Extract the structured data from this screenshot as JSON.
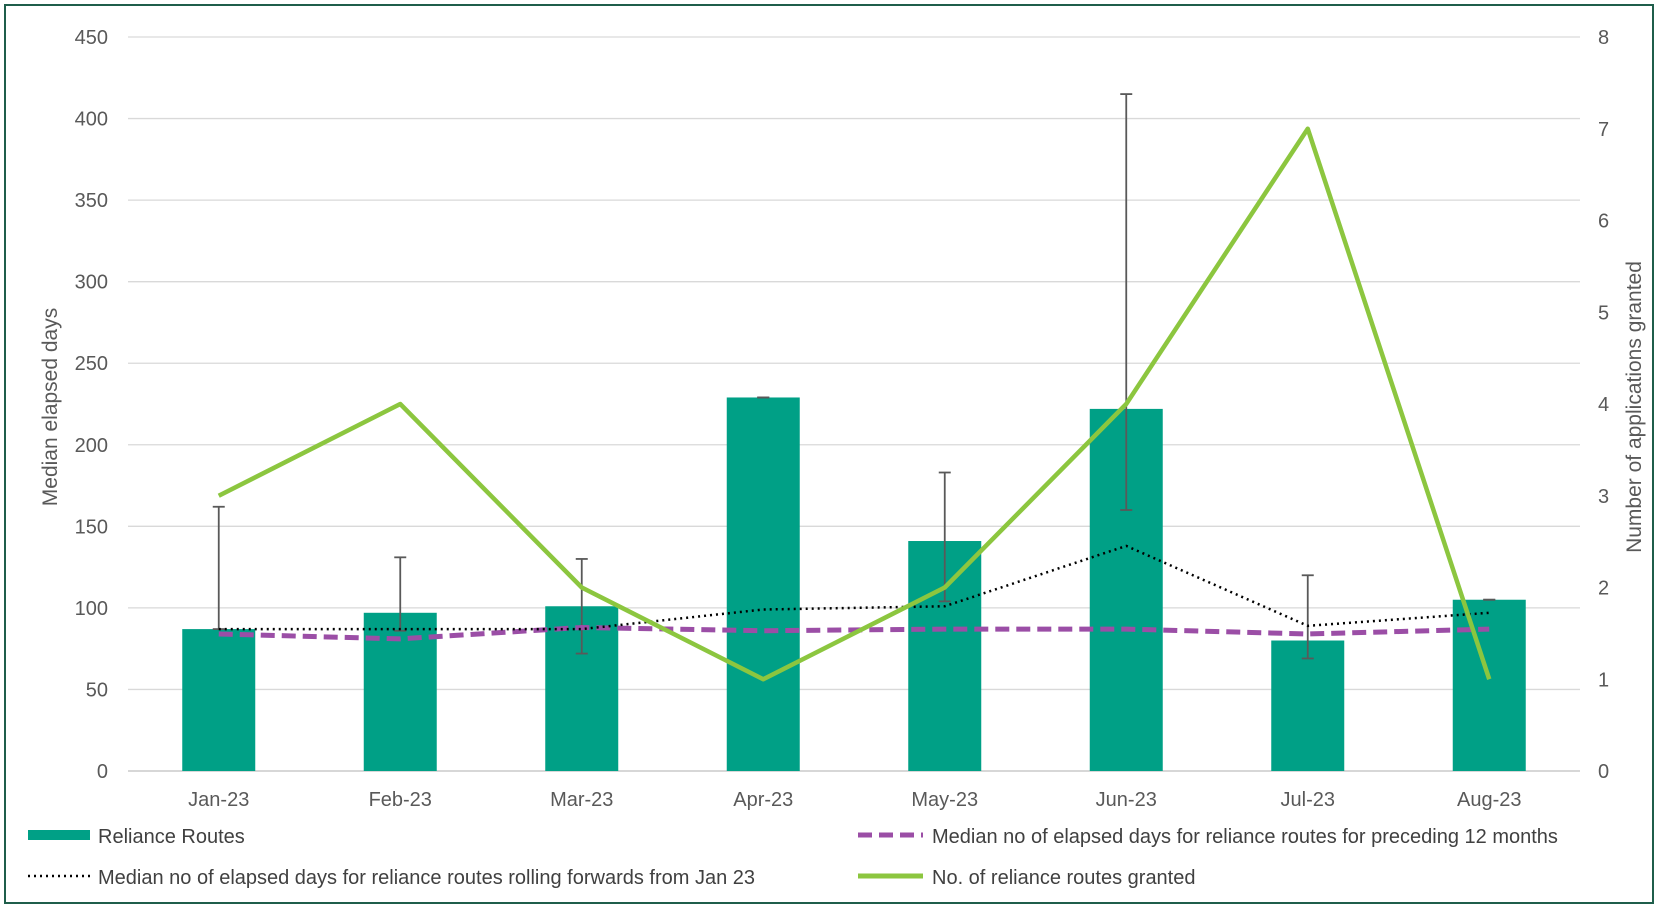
{
  "chart_data": {
    "type": "bar",
    "categories": [
      "Jan-23",
      "Feb-23",
      "Mar-23",
      "Apr-23",
      "May-23",
      "Jun-23",
      "Jul-23",
      "Aug-23"
    ],
    "ylabel": "Median elapsed days",
    "y2label": "Number  of applications granted",
    "ylim": [
      0,
      450
    ],
    "y_ticks": [
      0,
      50,
      100,
      150,
      200,
      250,
      300,
      350,
      400,
      450
    ],
    "y2lim": [
      0,
      8
    ],
    "y2_ticks": [
      0,
      1,
      2,
      3,
      4,
      5,
      6,
      7,
      8
    ],
    "grid": true,
    "legend_position": "bottom",
    "series": [
      {
        "name": "Reliance Routes",
        "type": "bar",
        "axis": "left",
        "color": "#00a086",
        "values": [
          87,
          97,
          101,
          229,
          141,
          222,
          80,
          105
        ],
        "error_low": [
          87,
          86,
          72,
          229,
          104,
          160,
          69,
          105
        ],
        "error_high": [
          162,
          131,
          130,
          229,
          183,
          415,
          120,
          105
        ]
      },
      {
        "name": "Median no of elapsed days for reliance routes for preceding 12 months",
        "type": "line",
        "style": "dashed",
        "axis": "left",
        "color": "#9b4ea6",
        "values": [
          84,
          81,
          88,
          86,
          87,
          87,
          84,
          87
        ]
      },
      {
        "name": "Median no of elapsed days for reliance routes rolling forwards from Jan 23",
        "type": "line",
        "style": "dotted",
        "axis": "left",
        "color": "#000000",
        "values": [
          87,
          87,
          87,
          99,
          101,
          138,
          89,
          97
        ]
      },
      {
        "name": "No. of reliance routes granted",
        "type": "line",
        "style": "solid",
        "axis": "right",
        "color": "#8cc63f",
        "values": [
          3,
          4,
          2,
          1,
          2,
          4,
          7,
          1
        ]
      }
    ]
  }
}
